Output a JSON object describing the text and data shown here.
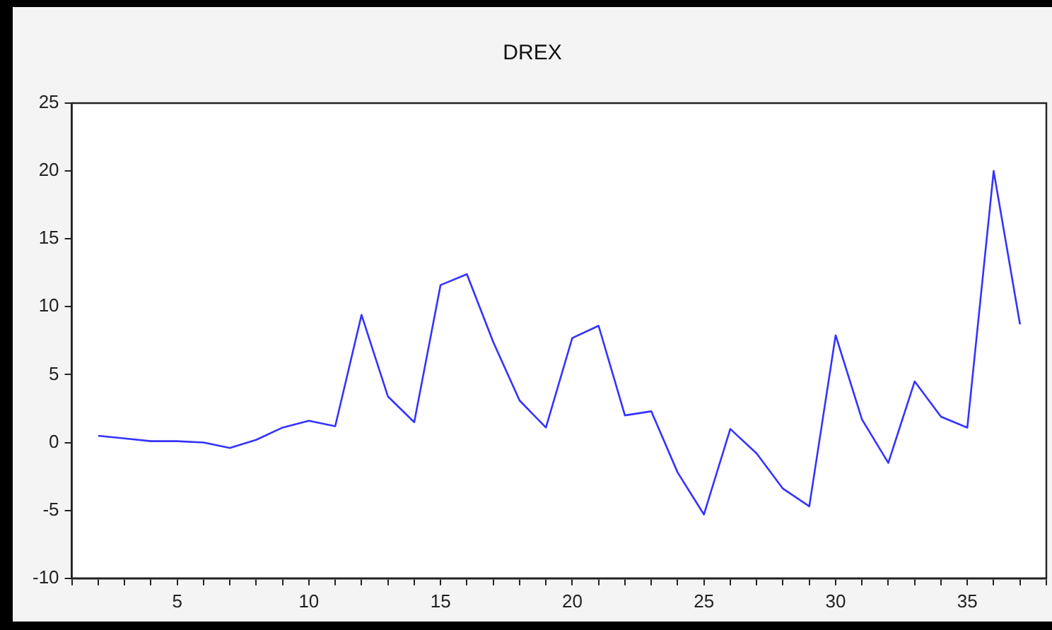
{
  "chart_data": {
    "type": "line",
    "title": "DREX",
    "x": [
      2,
      3,
      4,
      5,
      6,
      7,
      8,
      9,
      10,
      11,
      12,
      13,
      14,
      15,
      16,
      17,
      18,
      19,
      20,
      21,
      22,
      23,
      24,
      25,
      26,
      27,
      28,
      29,
      30,
      31,
      32,
      33,
      34,
      35,
      36,
      37
    ],
    "series": [
      {
        "color": "#3333ff",
        "values": [
          0.5,
          0.3,
          0.1,
          0.1,
          0.0,
          -0.4,
          0.2,
          1.1,
          1.6,
          1.2,
          9.4,
          3.4,
          1.5,
          11.6,
          12.4,
          7.4,
          3.1,
          1.1,
          7.7,
          8.6,
          2.0,
          2.3,
          -2.2,
          -5.3,
          1.0,
          -0.8,
          -3.4,
          -4.7,
          7.9,
          1.7,
          -1.5,
          4.5,
          1.9,
          1.1,
          20.0,
          8.7
        ]
      }
    ],
    "xlim": [
      1,
      38
    ],
    "xticks": [
      {
        "value": 1,
        "label": null
      },
      {
        "value": 2,
        "label": null
      },
      {
        "value": 3,
        "label": null
      },
      {
        "value": 4,
        "label": null
      },
      5,
      {
        "value": 6,
        "label": null
      },
      {
        "value": 7,
        "label": null
      },
      {
        "value": 8,
        "label": null
      },
      {
        "value": 9,
        "label": null
      },
      10,
      {
        "value": 11,
        "label": null
      },
      {
        "value": 12,
        "label": null
      },
      {
        "value": 13,
        "label": null
      },
      {
        "value": 14,
        "label": null
      },
      15,
      {
        "value": 16,
        "label": null
      },
      {
        "value": 17,
        "label": null
      },
      {
        "value": 18,
        "label": null
      },
      {
        "value": 19,
        "label": null
      },
      20,
      {
        "value": 21,
        "label": null
      },
      {
        "value": 22,
        "label": null
      },
      {
        "value": 23,
        "label": null
      },
      {
        "value": 24,
        "label": null
      },
      25,
      {
        "value": 26,
        "label": null
      },
      {
        "value": 27,
        "label": null
      },
      {
        "value": 28,
        "label": null
      },
      {
        "value": 29,
        "label": null
      },
      30,
      {
        "value": 31,
        "label": null
      },
      {
        "value": 32,
        "label": null
      },
      {
        "value": 33,
        "label": null
      },
      {
        "value": 34,
        "label": null
      },
      35,
      {
        "value": 36,
        "label": null
      },
      {
        "value": 37,
        "label": null
      },
      {
        "value": 38,
        "label": null
      }
    ],
    "ylim": [
      -10,
      25
    ],
    "yticks": [
      -10,
      -5,
      0,
      5,
      10,
      15,
      20,
      25
    ],
    "grid": false,
    "legend": false,
    "marker": "none",
    "line_style": "solid"
  }
}
